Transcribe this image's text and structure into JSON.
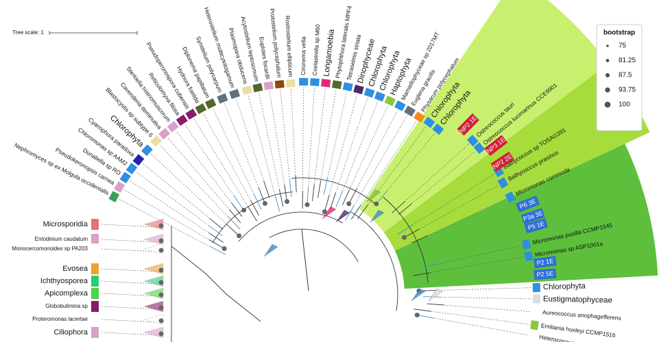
{
  "tree_scale": "Tree scale: 1",
  "legend": {
    "title": "bootstrap",
    "values": [
      75,
      81.25,
      87.5,
      93.75,
      100
    ]
  },
  "leaves": [
    {
      "label": "Nephromyces sp ex Molgula occidentalis",
      "color": "#3a9e5a"
    },
    {
      "label": "Pseudokeronopsis carnea",
      "color": "#d9a0c8"
    },
    {
      "label": "Dunaliella sp RO",
      "color": "#2f8fe0"
    },
    {
      "label": "Chloromonas sp AAM2",
      "color": "#2f8fe0"
    },
    {
      "label": "Cyanophora paradoxa",
      "color": "#2222aa"
    },
    {
      "label": "Chlorophyta",
      "color": "#2f8fe0"
    },
    {
      "label": "Blastocystis sp subtype 6",
      "color": "#e8e0a0"
    },
    {
      "label": "Cavenderia deminutiva",
      "color": "#d9a0c8"
    },
    {
      "label": "Sterkiella histriomuscorum",
      "color": "#d9a0c8"
    },
    {
      "label": "Reticulomyxa filosa",
      "color": "#8a1a6a"
    },
    {
      "label": "Pseudoperonospora cubensis",
      "color": "#8a1a6a"
    },
    {
      "label": "Hydnora foetida",
      "color": "#4f6a2a"
    },
    {
      "label": "Diplonema papillatum",
      "color": "#4f6a2a"
    },
    {
      "label": "Synstelium polycarpum",
      "color": "#607080"
    },
    {
      "label": "Heterostelium multicytotogamum",
      "color": "#607080"
    },
    {
      "label": "Plasmopara obducens",
      "color": "#e8e0a0"
    },
    {
      "label": "Acytostelium leptosomum",
      "color": "#4f6a2a"
    },
    {
      "label": "Euplotes focardii",
      "color": "#d9a0c8"
    },
    {
      "label": "Protostelium polycephalum",
      "color": "#8a4a10"
    },
    {
      "label": "Rostrostelium ellipticum",
      "color": "#e8e0a0"
    },
    {
      "label": "Cironema vella",
      "color": "#2f8fe0"
    },
    {
      "label": "Coelastrella sp M60",
      "color": "#2f8fe0"
    },
    {
      "label": "Longamoebia",
      "color": "#e0287a"
    },
    {
      "label": "Phytophthora lateralis MPF4",
      "color": "#4f6a2a"
    },
    {
      "label": "Tetraselmis striata",
      "color": "#2f8fe0"
    },
    {
      "label": "Dinophyceae",
      "color": "#4a2a6a"
    },
    {
      "label": "Chlorophyta",
      "color": "#2f8fe0"
    },
    {
      "label": "Chlorophyta",
      "color": "#2f8fe0"
    },
    {
      "label": "Haptophyta",
      "color": "#8cc63f"
    },
    {
      "label": "Mamiellophyceae sp 2017MT",
      "color": "#2f8fe0"
    },
    {
      "label": "Euglena gracilis",
      "color": "#607080"
    },
    {
      "label": "Physarum polycephalum",
      "color": "#f08c1e"
    },
    {
      "label": "Chlorophyta",
      "color": "#2f8fe0"
    },
    {
      "label": "Chlorophyta",
      "color": "#2f8fe0"
    },
    {
      "label": "Ostreococcus tauri",
      "color": "#2f8fe0"
    },
    {
      "label": "Ostreococcus lucimarinus CCE9901",
      "color": "#2f8fe0"
    },
    {
      "label": "Bathycoccus sp TOSAG391",
      "color": "#2f8fe0"
    },
    {
      "label": "Bathycoccus prasinos",
      "color": "#2f8fe0"
    },
    {
      "label": "Micromonas commoda",
      "color": "#2f8fe0"
    },
    {
      "label": "Micromonas pusilla CCMP1545",
      "color": "#2f8fe0"
    },
    {
      "label": "Micromonas sp ASP1001a",
      "color": "#2f8fe0"
    },
    {
      "label": "Chlorophyta",
      "color": "#2f8fe0"
    },
    {
      "label": "Eustigmatophyceae",
      "color": "#dddddd"
    },
    {
      "label": "Aureococcus anophagefferens",
      "color": "#ffffff"
    },
    {
      "label": "Emiliania huxleyi CCMP1516",
      "color": "#8cc63f"
    },
    {
      "label": "Heterococcus sp DN",
      "color": "#ffffff"
    }
  ],
  "tags": [
    {
      "label": "NP2 1E",
      "color": "#d0203a"
    },
    {
      "label": "NP3 1E",
      "color": "#d0203a"
    },
    {
      "label": "NP2 2E",
      "color": "#d0203a"
    },
    {
      "label": "P6 3E",
      "color": "#2f6fd6"
    },
    {
      "label": "P3a 3E",
      "color": "#2f6fd6"
    },
    {
      "label": "P5 1E",
      "color": "#2f6fd6"
    },
    {
      "label": "P2 1E",
      "color": "#2f6fd6"
    },
    {
      "label": "P2 5E",
      "color": "#2f6fd6"
    }
  ],
  "left_labels": [
    {
      "label": "Microsporidia",
      "color": "#e87070"
    },
    {
      "label": "Entodinium caudatum",
      "color": "#d9a0c8"
    },
    {
      "label": "Monocercomonoides sp PA203",
      "color": "#ffffff"
    },
    {
      "label": "Evosea",
      "color": "#f0a030"
    },
    {
      "label": "Ichthyosporea",
      "color": "#2ecc71"
    },
    {
      "label": "Apicomplexa",
      "color": "#4cd24c"
    },
    {
      "label": "Globobulimina sp",
      "color": "#8a1a6a"
    },
    {
      "label": "Proteromonas lacertae",
      "color": "#ffffff"
    },
    {
      "label": "Ciliophora",
      "color": "#d9a0c8"
    }
  ]
}
